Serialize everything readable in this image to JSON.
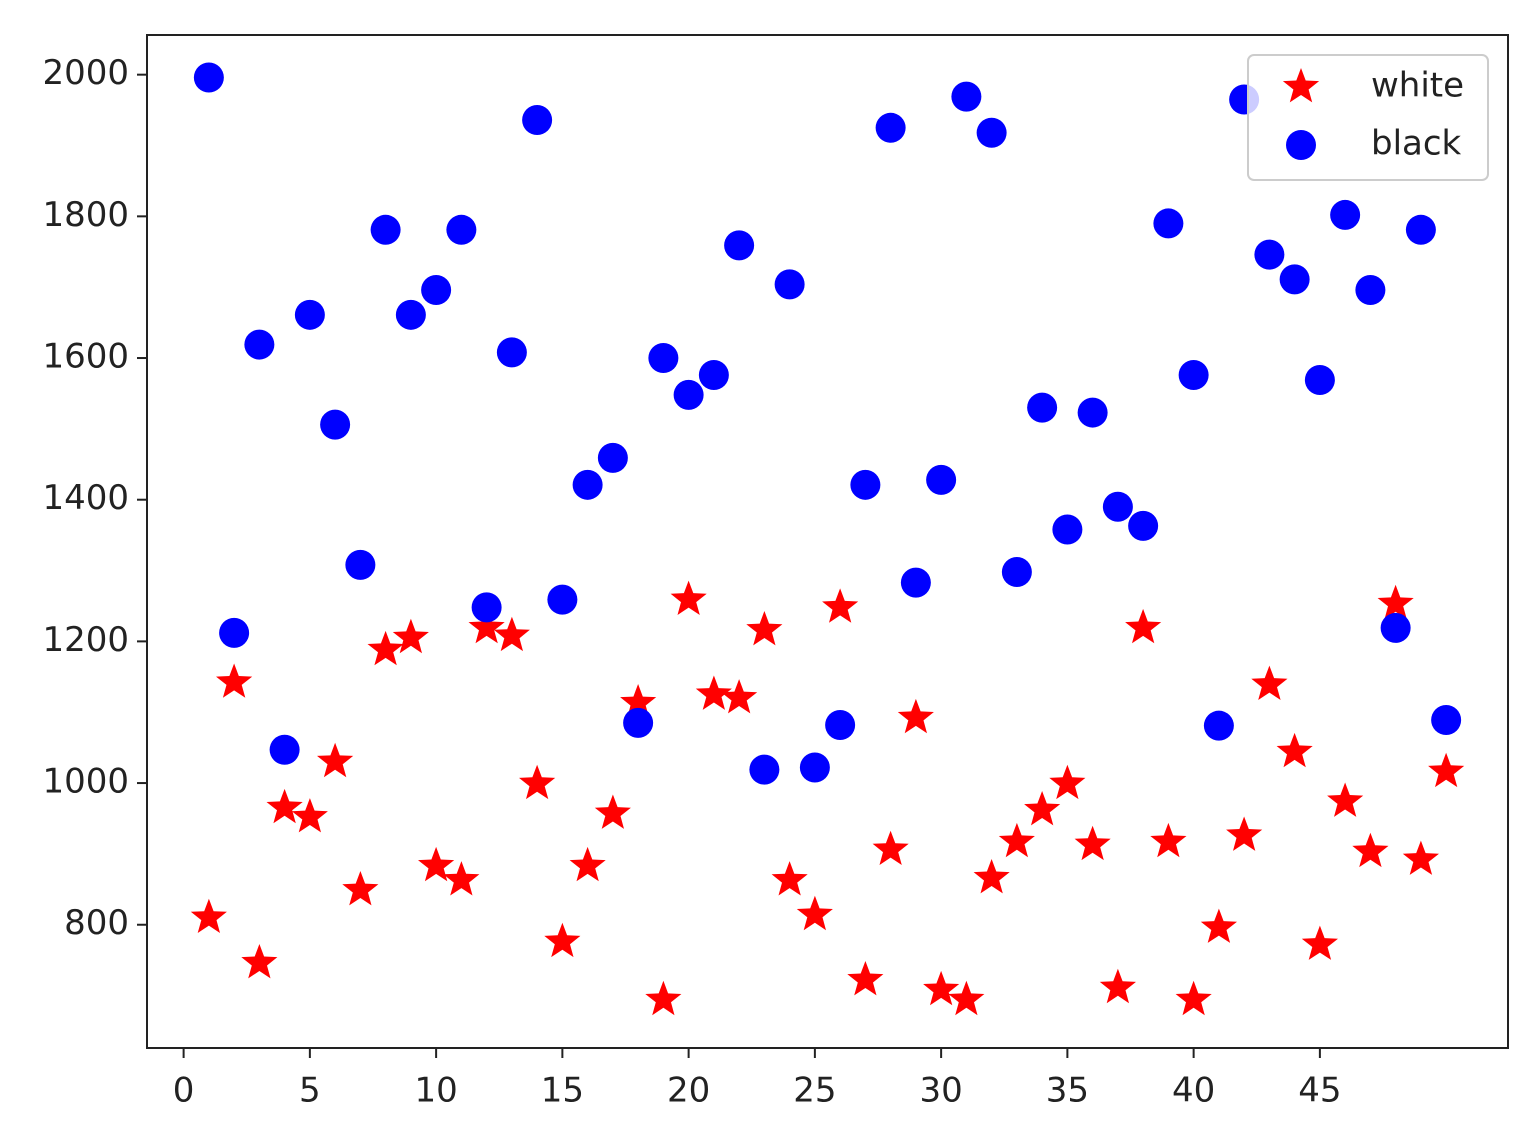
{
  "chart_data": {
    "type": "scatter",
    "x": [
      1,
      2,
      3,
      4,
      5,
      6,
      7,
      8,
      9,
      10,
      11,
      12,
      13,
      14,
      15,
      16,
      17,
      18,
      19,
      20,
      21,
      22,
      23,
      24,
      25,
      26,
      27,
      28,
      29,
      30,
      31,
      32,
      33,
      34,
      35,
      36,
      37,
      38,
      39,
      40,
      41,
      42,
      43,
      44,
      45,
      46,
      47,
      48,
      49,
      50
    ],
    "series": [
      {
        "name": "white",
        "color": "#ff0000",
        "marker": "star",
        "values": [
          810,
          1142,
          746,
          965,
          952,
          1030,
          849,
          1188,
          1205,
          883,
          863,
          1219,
          1208,
          999,
          776,
          883,
          957,
          1113,
          694,
          1259,
          1125,
          1120,
          1216,
          863,
          814,
          1248,
          722,
          906,
          1092,
          708,
          694,
          866,
          917,
          962,
          999,
          913,
          711,
          1219,
          917,
          694,
          796,
          926,
          1139,
          1044,
          772,
          974,
          903,
          1253,
          892,
          1016
        ]
      },
      {
        "name": "black",
        "color": "#0000ff",
        "marker": "circle",
        "values": [
          1996,
          1212,
          1619,
          1047,
          1661,
          1506,
          1308,
          1781,
          1661,
          1696,
          1781,
          1248,
          1608,
          1936,
          1259,
          1421,
          1459,
          1085,
          1600,
          1548,
          1576,
          1759,
          1019,
          1704,
          1022,
          1082,
          1421,
          1925,
          1283,
          1428,
          1969,
          1918,
          1298,
          1530,
          1358,
          1523,
          1390,
          1363,
          1790,
          1576,
          1081,
          1965,
          1746,
          1711,
          1569,
          1802,
          1696,
          1219,
          1781,
          1089
        ]
      }
    ],
    "xlim": [
      -1.45,
      52.45
    ],
    "xticks": [
      0,
      5,
      10,
      15,
      20,
      25,
      30,
      35,
      40,
      45
    ],
    "ylim": [
      626,
      2056
    ],
    "yticks": [
      800,
      1000,
      1200,
      1400,
      1600,
      1800,
      2000
    ],
    "legend": "upper right",
    "grid": false
  }
}
